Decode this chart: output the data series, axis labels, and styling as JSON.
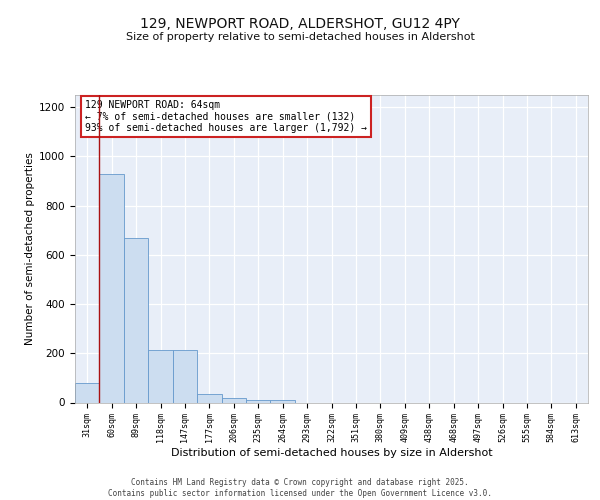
{
  "title1": "129, NEWPORT ROAD, ALDERSHOT, GU12 4PY",
  "title2": "Size of property relative to semi-detached houses in Aldershot",
  "xlabel": "Distribution of semi-detached houses by size in Aldershot",
  "ylabel": "Number of semi-detached properties",
  "annotation_title": "129 NEWPORT ROAD: 64sqm",
  "annotation_line1": "← 7% of semi-detached houses are smaller (132)",
  "annotation_line2": "93% of semi-detached houses are larger (1,792) →",
  "footer1": "Contains HM Land Registry data © Crown copyright and database right 2025.",
  "footer2": "Contains public sector information licensed under the Open Government Licence v3.0.",
  "bins": [
    "31sqm",
    "60sqm",
    "89sqm",
    "118sqm",
    "147sqm",
    "177sqm",
    "206sqm",
    "235sqm",
    "264sqm",
    "293sqm",
    "322sqm",
    "351sqm",
    "380sqm",
    "409sqm",
    "438sqm",
    "468sqm",
    "497sqm",
    "526sqm",
    "555sqm",
    "584sqm",
    "613sqm"
  ],
  "values": [
    80,
    930,
    670,
    215,
    215,
    35,
    20,
    10,
    10,
    0,
    0,
    0,
    0,
    0,
    0,
    0,
    0,
    0,
    0,
    0,
    0
  ],
  "bar_color": "#ccddf0",
  "bar_edge_color": "#6699cc",
  "marker_color": "#aa1111",
  "ylim": [
    0,
    1250
  ],
  "yticks": [
    0,
    200,
    400,
    600,
    800,
    1000,
    1200
  ],
  "bg_color": "#e8eef8",
  "grid_color": "#ffffff",
  "annotation_box_color": "#ffffff",
  "annotation_box_edge": "#cc2222",
  "spine_color": "#aaaaaa"
}
